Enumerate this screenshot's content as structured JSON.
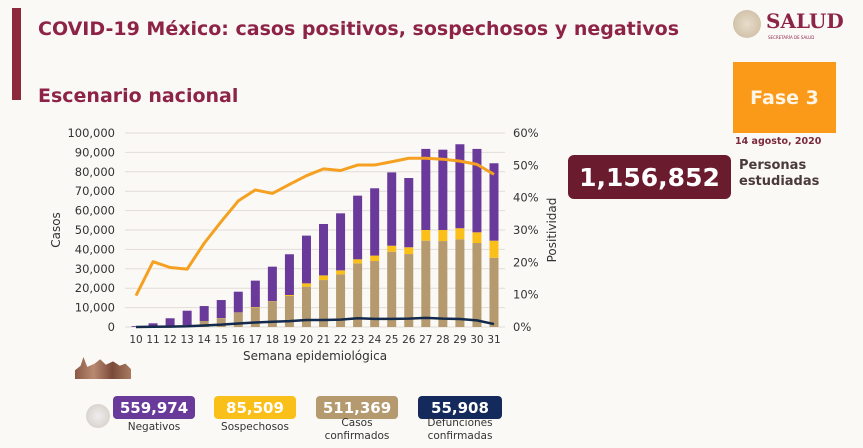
{
  "header": {
    "title": "COVID-19 México: casos positivos, sospechosos y negativos",
    "subtitle": "Escenario nacional",
    "logo_text": "SALUD",
    "logo_subtext": "SECRETARÍA DE SALUD",
    "phase": "Fase 3",
    "date": "14 agosto, 2020"
  },
  "summary": {
    "personas_value": "1,156,852",
    "personas_label_1": "Personas",
    "personas_label_2": "estudiadas"
  },
  "stats": [
    {
      "value": "559,974",
      "label": "Negativos",
      "label2": "",
      "color": "#6a3a9a"
    },
    {
      "value": "85,509",
      "label": "Sospechosos",
      "label2": "",
      "color": "#fbbf1a"
    },
    {
      "value": "511,369",
      "label": "Casos",
      "label2": "confirmados",
      "color": "#b49a6e"
    },
    {
      "value": "55,908",
      "label": "Defunciones",
      "label2": "confirmadas",
      "color": "#142a5c"
    }
  ],
  "chart_data": {
    "type": "bar",
    "stacked": true,
    "xlabel": "Semana epidemiológica",
    "ylabel": "Casos",
    "y2label": "Positividad",
    "ylim": [
      0,
      100000
    ],
    "y2lim": [
      0,
      60
    ],
    "yticks": [
      "0",
      "10,000",
      "20,000",
      "30,000",
      "40,000",
      "50,000",
      "60,000",
      "70,000",
      "80,000",
      "90,000",
      "100,000"
    ],
    "y2ticks": [
      "0%",
      "10%",
      "20%",
      "30%",
      "40%",
      "50%",
      "60%"
    ],
    "grid": true,
    "categories": [
      "10",
      "11",
      "12",
      "13",
      "14",
      "15",
      "16",
      "17",
      "18",
      "19",
      "20",
      "21",
      "22",
      "23",
      "24",
      "25",
      "26",
      "27",
      "28",
      "29",
      "30",
      "31"
    ],
    "series": [
      {
        "name": "Casos confirmados",
        "type": "bar",
        "color": "#b49a6e",
        "values": [
          100,
          200,
          500,
          1000,
          3100,
          4500,
          7400,
          10100,
          13100,
          16000,
          20800,
          24200,
          27100,
          32800,
          34000,
          38800,
          37600,
          44500,
          44300,
          45200,
          43300,
          35700
        ]
      },
      {
        "name": "Sospechosos",
        "type": "bar",
        "color": "#fbbf1a",
        "values": [
          0,
          0,
          0,
          0,
          0,
          100,
          100,
          200,
          200,
          500,
          1700,
          2400,
          2100,
          2100,
          2800,
          3100,
          3500,
          5500,
          5700,
          5700,
          5500,
          8800
        ]
      },
      {
        "name": "Negativos",
        "type": "bar",
        "color": "#6a3a9a",
        "values": [
          400,
          1700,
          4000,
          7400,
          7700,
          9300,
          10700,
          13600,
          17800,
          21000,
          24600,
          26500,
          29400,
          32800,
          34700,
          37800,
          35700,
          41800,
          41400,
          43300,
          43000,
          39900
        ]
      },
      {
        "name": "Positividad",
        "type": "line",
        "axis": "right",
        "color": "#f5a020",
        "values": [
          9.7,
          20.2,
          18.4,
          17.9,
          25.9,
          32.6,
          39.0,
          42.4,
          41.3,
          44.1,
          46.8,
          48.9,
          48.4,
          50.1,
          50.1,
          51.1,
          52.2,
          52.2,
          51.9,
          51.3,
          50.3,
          47.2
        ]
      },
      {
        "name": "Defunciones",
        "type": "line",
        "axis": "left",
        "color": "#142a4c",
        "values": [
          0,
          100,
          200,
          400,
          800,
          1200,
          1800,
          2300,
          2700,
          3000,
          3600,
          3600,
          3800,
          4500,
          4200,
          4200,
          4300,
          4700,
          4300,
          4100,
          3400,
          1500
        ]
      }
    ]
  }
}
